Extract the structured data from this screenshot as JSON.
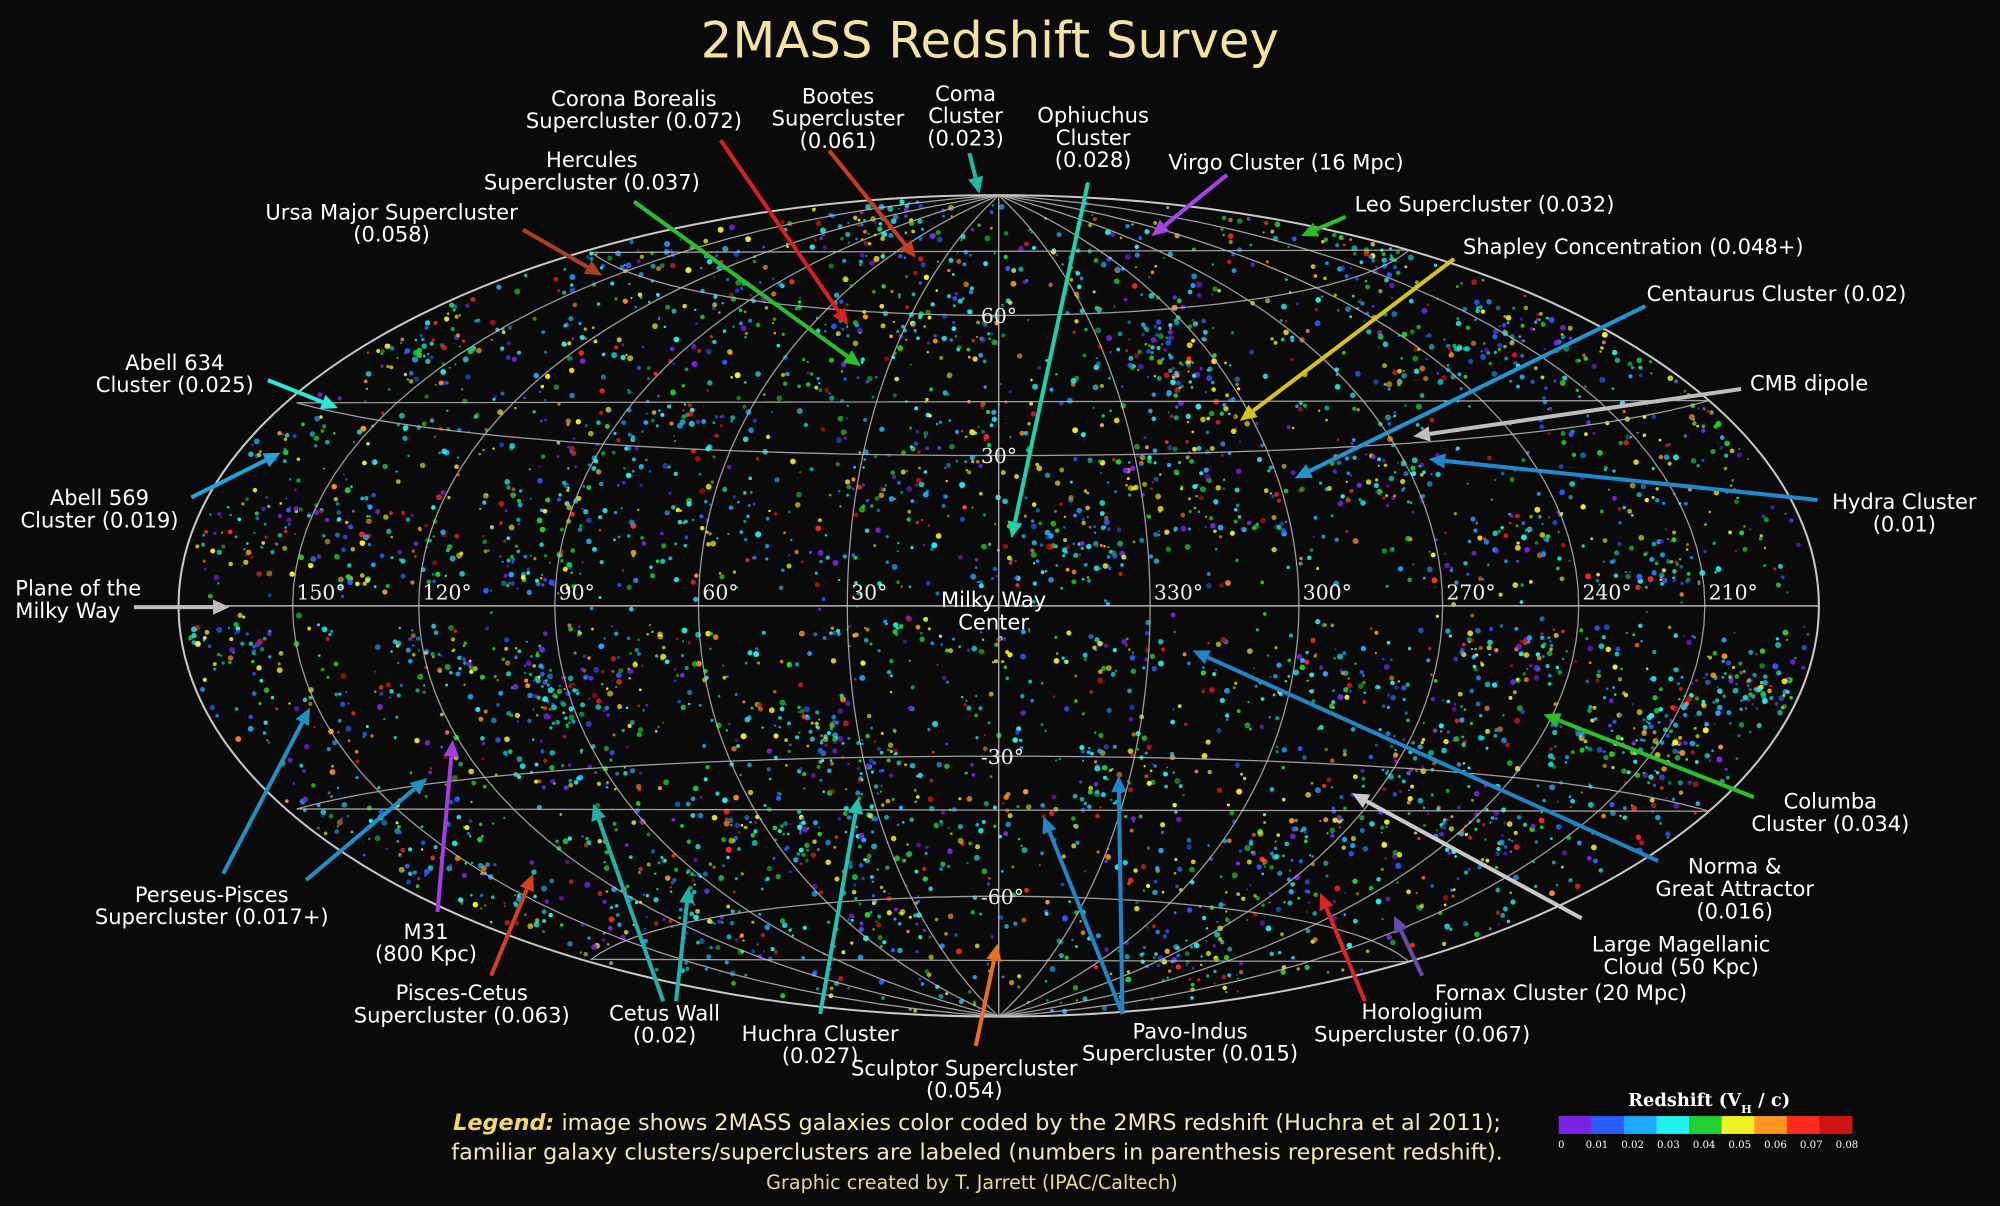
{
  "header": {
    "title": "2MASS Redshift Survey"
  },
  "grid": {
    "longitude_labels": [
      {
        "value": 150,
        "label": "150°"
      },
      {
        "value": 120,
        "label": "120°"
      },
      {
        "value": 90,
        "label": "90°"
      },
      {
        "value": 60,
        "label": "60°"
      },
      {
        "value": 30,
        "label": "30°"
      },
      {
        "value": 330,
        "label": "330°"
      },
      {
        "value": 300,
        "label": "300°"
      },
      {
        "value": 270,
        "label": "270°"
      },
      {
        "value": 240,
        "label": "240°"
      },
      {
        "value": 210,
        "label": "210°"
      }
    ],
    "latitude_labels": [
      {
        "value": 60,
        "label": "60°"
      },
      {
        "value": 30,
        "label": "30°"
      },
      {
        "value": -30,
        "label": "-30°"
      },
      {
        "value": -60,
        "label": "-60°"
      }
    ]
  },
  "annotations": [
    {
      "lines": [
        "Corona Borealis",
        "Supercluster (0.072)"
      ],
      "color": "#d42020"
    },
    {
      "lines": [
        "Bootes",
        "Supercluster",
        "(0.061)"
      ],
      "color": "#c83a22"
    },
    {
      "lines": [
        "Coma",
        "Cluster",
        "(0.023)"
      ],
      "color": "#1fb8a0"
    },
    {
      "lines": [
        "Ophiuchus",
        "Cluster",
        "(0.028)"
      ],
      "color": "#22d0a8"
    },
    {
      "lines": [
        "Virgo Cluster (16 Mpc)"
      ],
      "color": "#a244e6"
    },
    {
      "lines": [
        "Hercules",
        "Supercluster (0.037)"
      ],
      "color": "#2cbd2c"
    },
    {
      "lines": [
        "Leo Supercluster (0.032)"
      ],
      "color": "#2cbd2c"
    },
    {
      "lines": [
        "Ursa Major Supercluster",
        "(0.058)"
      ],
      "color": "#a8401c"
    },
    {
      "lines": [
        "Shapley Concentration (0.048+)"
      ],
      "color": "#d6c21e"
    },
    {
      "lines": [
        "Centaurus Cluster (0.02)"
      ],
      "color": "#2294d2"
    },
    {
      "lines": [
        "Abell 634",
        "Cluster (0.025)"
      ],
      "color": "#30e6d4"
    },
    {
      "lines": [
        "CMB dipole"
      ],
      "color": "#bdbdbd"
    },
    {
      "lines": [
        "Abell 569",
        "Cluster (0.019)"
      ],
      "color": "#22a2d6"
    },
    {
      "lines": [
        "Hydra Cluster",
        "(0.01)"
      ],
      "color": "#2288cc"
    },
    {
      "lines": [
        "Plane of the",
        "Milky Way"
      ],
      "color": "#bdbdbd"
    },
    {
      "lines": [
        "Milky Way",
        "Center"
      ],
      "color": "#ffffff"
    },
    {
      "lines": [
        "Perseus-Pisces",
        "Supercluster (0.017+)"
      ],
      "color": "#2290c4"
    },
    {
      "lines": [
        "M31",
        "(800 Kpc)"
      ],
      "color": "#a03ee0"
    },
    {
      "lines": [
        "Pisces-Cetus",
        "Supercluster (0.063)"
      ],
      "color": "#d2401e"
    },
    {
      "lines": [
        "Cetus Wall",
        "(0.02)"
      ],
      "color": "#24b0a8"
    },
    {
      "lines": [
        "Huchra Cluster",
        "(0.027)"
      ],
      "color": "#24c0b0"
    },
    {
      "lines": [
        "Sculptor Supercluster",
        "(0.054)"
      ],
      "color": "#e8701c"
    },
    {
      "lines": [
        "Pavo-Indus",
        "Supercluster (0.015)"
      ],
      "color": "#2284c4"
    },
    {
      "lines": [
        "Horologium",
        "Supercluster (0.067)"
      ],
      "color": "#dc2424"
    },
    {
      "lines": [
        "Fornax Cluster (20 Mpc)"
      ],
      "color": "#6a4aa8"
    },
    {
      "lines": [
        "Large Magellanic",
        "Cloud (50 Kpc)"
      ],
      "color": "#c8c8c8"
    },
    {
      "lines": [
        "Norma &",
        "Great Attractor",
        "(0.016)"
      ],
      "color": "#2284c4"
    },
    {
      "lines": [
        "Columba",
        "Cluster (0.034)"
      ],
      "color": "#2cbd2c"
    }
  ],
  "legend": {
    "lead": "Legend:",
    "lines": [
      " image shows 2MASS galaxies color coded by the 2MRS redshift (Huchra et al 2011);",
      "familiar galaxy clusters/superclusters are labeled (numbers in parenthesis represent redshift)."
    ]
  },
  "credit": "Graphic created by T. Jarrett (IPAC/Caltech)",
  "colorbar": {
    "title": {
      "prefix": "Redshift (V",
      "sub": "H",
      "suffix": " / c)"
    },
    "ticks": [
      "0",
      "0.01",
      "0.02",
      "0.03",
      "0.04",
      "0.05",
      "0.06",
      "0.07",
      "0.08"
    ],
    "colors": [
      "#7b22e6",
      "#2a5cff",
      "#1fa8ff",
      "#22f0f0",
      "#20d030",
      "#f2f020",
      "#ff9620",
      "#ff2a20",
      "#cf1414"
    ]
  }
}
